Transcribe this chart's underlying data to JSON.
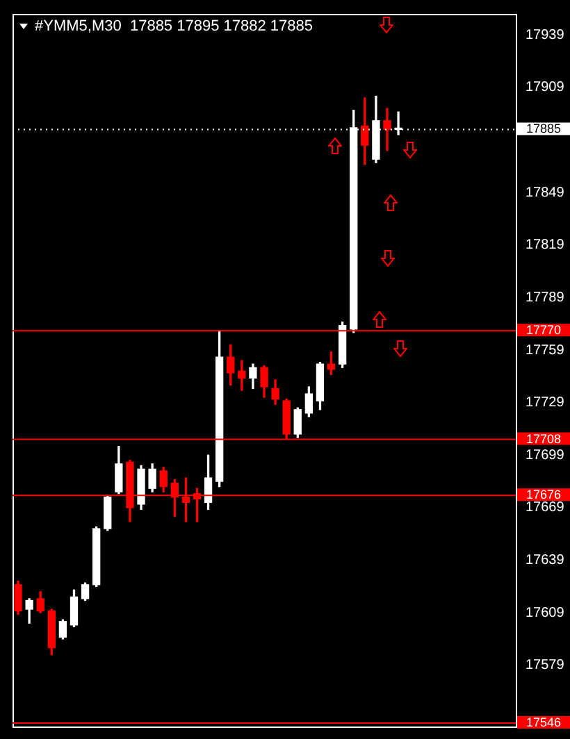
{
  "chart_data": {
    "type": "candlestick",
    "title": "#YMM5,M30  17885 17895 17882 17885",
    "categories": [
      null,
      null,
      null,
      null,
      null,
      null,
      null,
      null,
      null,
      null,
      null,
      null,
      null,
      null,
      null,
      null,
      null,
      null,
      null,
      null,
      null,
      null,
      null,
      null,
      null,
      null,
      null,
      null,
      null,
      null,
      null,
      null,
      null,
      null,
      null,
      null,
      null,
      null,
      null,
      null,
      null,
      null,
      null,
      null,
      null
    ],
    "ohlc": [
      [
        17625,
        17627,
        17608,
        17610
      ],
      [
        17611,
        17617,
        17603,
        17616
      ],
      [
        17617,
        17621,
        17609,
        17610
      ],
      [
        17610,
        17611,
        17585,
        17589
      ],
      [
        17595,
        17605,
        17594,
        17604
      ],
      [
        17602,
        17622,
        17601,
        17618
      ],
      [
        17617,
        17626,
        17616,
        17625
      ],
      [
        17625,
        17658,
        17624,
        17657
      ],
      [
        17657,
        17676,
        17656,
        17675
      ],
      [
        17678,
        17704,
        17677,
        17694
      ],
      [
        17695,
        17696,
        17661,
        17669
      ],
      [
        17671,
        17693,
        17668,
        17691
      ],
      [
        17680,
        17694,
        17678,
        17691
      ],
      [
        17690,
        17692,
        17678,
        17681
      ],
      [
        17683,
        17685,
        17664,
        17675
      ],
      [
        17675,
        17686,
        17661,
        17672
      ],
      [
        17677,
        17680,
        17661,
        17674
      ],
      [
        17672,
        17699,
        17668,
        17686
      ],
      [
        17684,
        17770,
        17681,
        17755
      ],
      [
        17755,
        17762,
        17739,
        17746
      ],
      [
        17747,
        17753,
        17736,
        17743
      ],
      [
        17743,
        17751,
        17737,
        17749
      ],
      [
        17749,
        17750,
        17732,
        17738
      ],
      [
        17737,
        17742,
        17728,
        17731
      ],
      [
        17730,
        17731,
        17708,
        17711
      ],
      [
        17711,
        17726,
        17709,
        17725
      ],
      [
        17723,
        17738,
        17721,
        17734
      ],
      [
        17730,
        17752,
        17725,
        17751
      ],
      [
        17751,
        17758,
        17745,
        17748
      ],
      [
        17751,
        17775,
        17749,
        17773
      ],
      [
        17771,
        17896,
        17769,
        17886
      ],
      [
        17887,
        17903,
        17865,
        17876
      ],
      [
        17868,
        17904,
        17866,
        17890
      ],
      [
        17890,
        17897,
        17873,
        17885
      ],
      [
        17885,
        17895,
        17882,
        17885
      ],
      null,
      null,
      null,
      null,
      null,
      null,
      null,
      null,
      null,
      null
    ],
    "colors": [
      "#ff0000",
      "#ffffff",
      "#ff0000",
      "#ff0000",
      "#ffffff",
      "#ffffff",
      "#ffffff",
      "#ffffff",
      "#ffffff",
      "#ffffff",
      "#ff0000",
      "#ffffff",
      "#ffffff",
      "#ff0000",
      "#ff0000",
      "#ff0000",
      "#ff0000",
      "#ffffff",
      "#ffffff",
      "#ff0000",
      "#ff0000",
      "#ffffff",
      "#ff0000",
      "#ff0000",
      "#ff0000",
      "#ffffff",
      "#ffffff",
      "#ffffff",
      "#ff0000",
      "#ffffff",
      "#ffffff",
      "#ff0000",
      "#ffffff",
      "#ff0000",
      "#ffffff",
      null,
      null,
      null,
      null,
      null,
      null,
      null,
      null,
      null,
      null
    ],
    "ylim": [
      17544,
      17951
    ],
    "yticks": [
      17579,
      17609,
      17639,
      17669,
      17699,
      17729,
      17759,
      17789,
      17819,
      17849,
      17909,
      17939
    ],
    "ref_lines": [
      {
        "axis": "y",
        "value": 17770,
        "label": "17770",
        "color": "#ff0000"
      },
      {
        "axis": "y",
        "value": 17708,
        "label": "17708",
        "color": "#ff0000"
      },
      {
        "axis": "y",
        "value": 17676,
        "label": "17676",
        "color": "#ff0000"
      },
      {
        "axis": "y",
        "value": 17546,
        "label": "17546",
        "color": "#ff0000"
      },
      {
        "axis": "y",
        "value": 17885,
        "label": "17885",
        "color": "#ffffff",
        "line_style": "dotted"
      }
    ],
    "grid": false,
    "legend": false,
    "tick_labels": "y"
  }
}
